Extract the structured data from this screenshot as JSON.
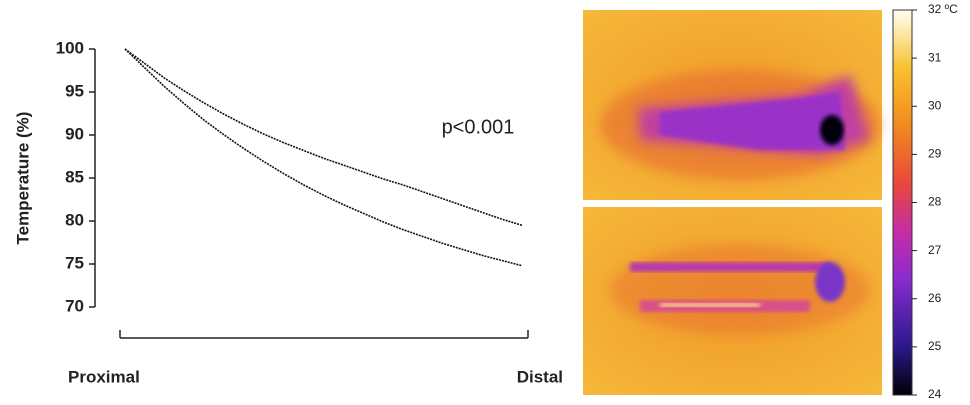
{
  "chart_data": {
    "type": "line",
    "y_label": "Temperature (%)",
    "annotation": "p<0.001",
    "categories": [
      "Proximal",
      null,
      null,
      null,
      null,
      null,
      null,
      null,
      null,
      null,
      null,
      null,
      null,
      null,
      null,
      null,
      null,
      null,
      null,
      null,
      "Distal"
    ],
    "series": [
      {
        "color": "#111111",
        "values": [
          100,
          98.3,
          96.6,
          95.1,
          93.7,
          92.4,
          91.2,
          90.1,
          89.1,
          88.2,
          87.3,
          86.5,
          85.7,
          84.9,
          84.2,
          83.4,
          82.6,
          81.8,
          81.0,
          80.2,
          79.5
        ]
      },
      {
        "color": "#111111",
        "values": [
          100,
          97.8,
          95.6,
          93.6,
          91.7,
          90.0,
          88.4,
          86.9,
          85.5,
          84.2,
          83.0,
          81.9,
          80.9,
          79.9,
          79.0,
          78.2,
          77.4,
          76.7,
          76.0,
          75.4,
          74.8
        ]
      }
    ],
    "ylim": [
      70,
      100
    ],
    "yticks": [
      70,
      75,
      80,
      85,
      90,
      95,
      100
    ]
  },
  "colorbar": {
    "lim": [
      24,
      32
    ],
    "ticks": [
      24,
      25,
      26,
      27,
      28,
      29,
      30,
      31,
      {
        "value": 32,
        "label": "32 ºC"
      }
    ]
  }
}
